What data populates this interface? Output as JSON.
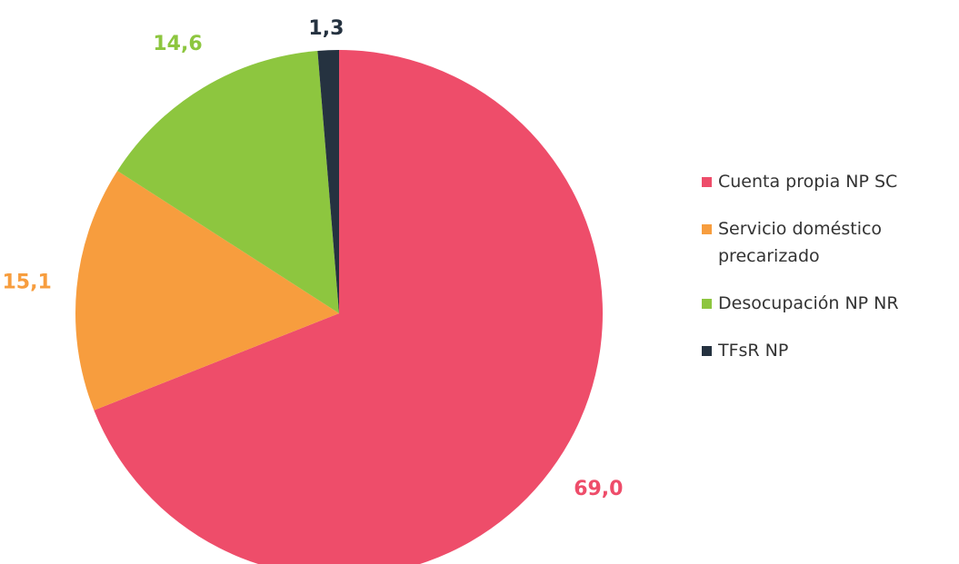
{
  "chart_data": {
    "type": "pie",
    "categories": [
      "Cuenta propia NP SC",
      "Servicio doméstico precarizado",
      "Desocupación NP NR",
      "TFsR NP"
    ],
    "values": [
      69.0,
      15.1,
      14.6,
      1.3
    ],
    "value_labels": [
      "69,0",
      "15,1",
      "14,6",
      "1,3"
    ],
    "colors": [
      "#ee4d6a",
      "#f79d3e",
      "#8dc63f",
      "#253240"
    ],
    "legend": "right"
  }
}
